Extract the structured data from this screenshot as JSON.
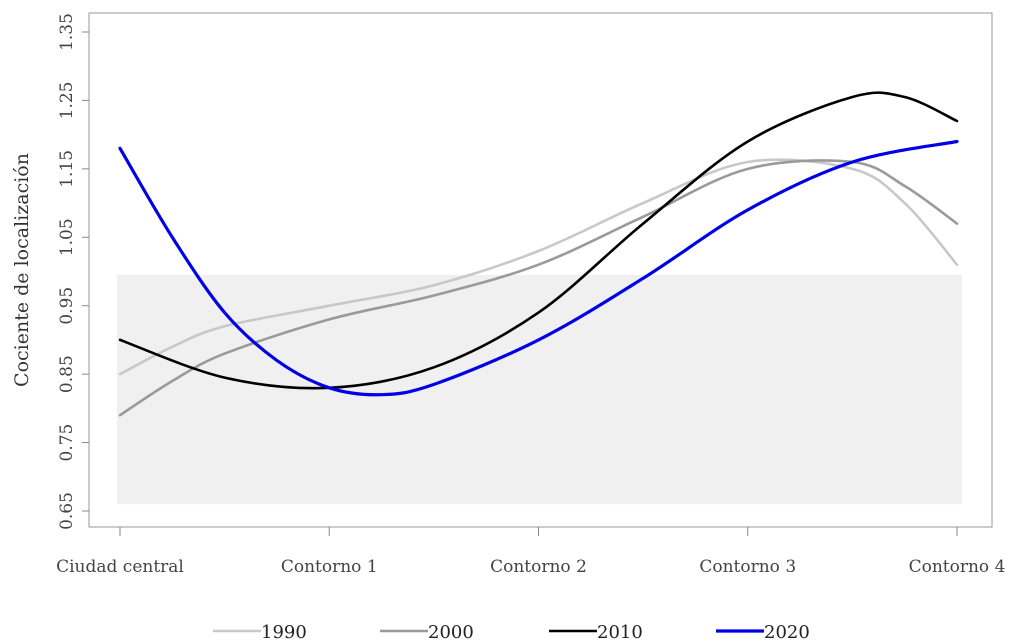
{
  "chart_data": {
    "type": "line",
    "title": "",
    "xlabel": "",
    "ylabel": "Cociente de localización",
    "categories": [
      "Ciudad central",
      "Contorno 1",
      "Contorno 2",
      "Contorno 3",
      "Contorno 4"
    ],
    "yticks": [
      "0.65",
      "0.75",
      "0.85",
      "0.95",
      "1.05",
      "1.15",
      "1.25",
      "1.35"
    ],
    "ylim": [
      0.63,
      1.36
    ],
    "band": {
      "from": 0.66,
      "to": 0.995,
      "color": "#f0f0f0"
    },
    "grid": false,
    "legend_position": "bottom",
    "series": [
      {
        "name": "1990",
        "color": "#c8c8c8",
        "points": [
          [
            0,
            0.85
          ],
          [
            0.25,
            0.89
          ],
          [
            0.5,
            0.92
          ],
          [
            1.0,
            0.95
          ],
          [
            1.5,
            0.98
          ],
          [
            2.0,
            1.03
          ],
          [
            2.5,
            1.1
          ],
          [
            3.0,
            1.16
          ],
          [
            3.5,
            1.15
          ],
          [
            3.75,
            1.1
          ],
          [
            4.0,
            1.01
          ]
        ]
      },
      {
        "name": "2000",
        "color": "#9a9a9a",
        "points": [
          [
            0,
            0.79
          ],
          [
            0.25,
            0.84
          ],
          [
            0.5,
            0.88
          ],
          [
            1.0,
            0.93
          ],
          [
            1.5,
            0.965
          ],
          [
            2.0,
            1.01
          ],
          [
            2.5,
            1.08
          ],
          [
            3.0,
            1.15
          ],
          [
            3.5,
            1.16
          ],
          [
            3.75,
            1.125
          ],
          [
            4.0,
            1.07
          ]
        ]
      },
      {
        "name": "2010",
        "color": "#000000",
        "points": [
          [
            0,
            0.9
          ],
          [
            0.5,
            0.845
          ],
          [
            1.0,
            0.83
          ],
          [
            1.5,
            0.86
          ],
          [
            2.0,
            0.94
          ],
          [
            2.5,
            1.07
          ],
          [
            3.0,
            1.19
          ],
          [
            3.5,
            1.255
          ],
          [
            3.75,
            1.255
          ],
          [
            4.0,
            1.22
          ]
        ]
      },
      {
        "name": "2020",
        "color": "#0000e6",
        "points": [
          [
            0,
            1.18
          ],
          [
            0.25,
            1.05
          ],
          [
            0.5,
            0.94
          ],
          [
            0.75,
            0.87
          ],
          [
            1.0,
            0.83
          ],
          [
            1.25,
            0.82
          ],
          [
            1.5,
            0.835
          ],
          [
            2.0,
            0.9
          ],
          [
            2.5,
            0.99
          ],
          [
            3.0,
            1.09
          ],
          [
            3.5,
            1.16
          ],
          [
            4.0,
            1.19
          ]
        ]
      }
    ]
  }
}
